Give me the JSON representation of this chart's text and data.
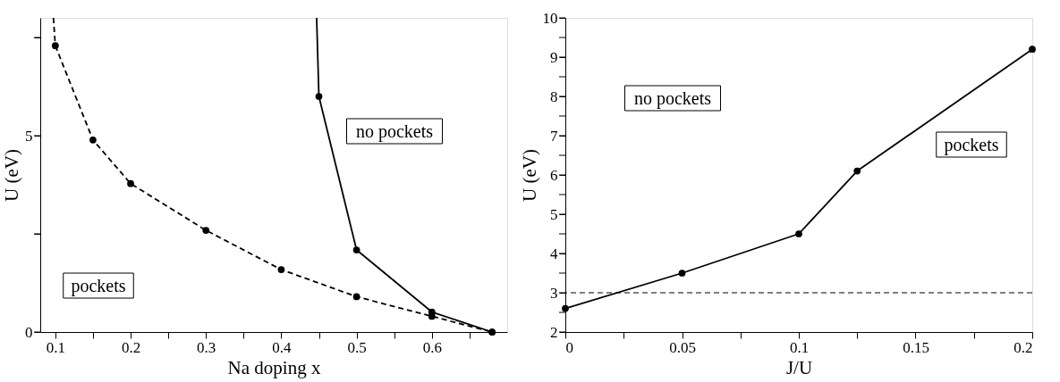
{
  "chart_data": [
    {
      "type": "line",
      "xlabel": "Na doping x",
      "ylabel": "U (eV)",
      "xlim": [
        0.08,
        0.7
      ],
      "ylim": [
        0,
        8
      ],
      "xticks": [
        0.1,
        {
          "value": 0.15,
          "label": null
        },
        0.2,
        {
          "value": 0.25,
          "label": null
        },
        0.3,
        {
          "value": 0.35,
          "label": null
        },
        0.4,
        {
          "value": 0.45,
          "label": null
        },
        0.5,
        {
          "value": 0.55,
          "label": null
        },
        0.6,
        {
          "value": 0.65,
          "label": null
        }
      ],
      "yticks": [
        0,
        {
          "value": 2.5,
          "label": null
        },
        5,
        {
          "value": 7.5,
          "label": null
        }
      ],
      "grid": false,
      "annotations": [
        "no pockets",
        "pockets"
      ],
      "series": [
        {
          "color": "#000000",
          "line_style": "dashed",
          "marker": "circle",
          "x": [
            0.1,
            0.15,
            0.2,
            0.3,
            0.4,
            0.5,
            0.6,
            0.68
          ],
          "values": [
            7.29,
            4.89,
            3.78,
            2.59,
            1.59,
            0.9,
            0.4,
            0
          ]
        },
        {
          "color": "#000000",
          "line_style": "dashed",
          "marker": "none",
          "x": [
            0.0975,
            0.1
          ],
          "values": [
            8,
            7.29
          ]
        },
        {
          "color": "#000000",
          "line_style": "solid",
          "marker": "circle",
          "x": [
            0.45,
            0.5,
            0.6,
            0.68
          ],
          "values": [
            6.0,
            2.09,
            0.51,
            0
          ]
        },
        {
          "color": "#000000",
          "line_style": "solid",
          "marker": "none",
          "x": [
            0.447,
            0.45
          ],
          "values": [
            8,
            6.0
          ]
        }
      ]
    },
    {
      "type": "line",
      "xlabel": "J/U",
      "ylabel": "U (eV)",
      "xlim": [
        0,
        0.2
      ],
      "ylim": [
        2,
        10
      ],
      "xticks": [
        0,
        {
          "value": 0.025,
          "label": null
        },
        0.05,
        {
          "value": 0.075,
          "label": null
        },
        0.1,
        {
          "value": 0.125,
          "label": null
        },
        0.15,
        {
          "value": 0.175,
          "label": null
        },
        0.2
      ],
      "yticks": [
        2,
        {
          "value": 2.5,
          "label": null
        },
        3,
        {
          "value": 3.5,
          "label": null
        },
        4,
        {
          "value": 4.5,
          "label": null
        },
        5,
        {
          "value": 5.5,
          "label": null
        },
        6,
        {
          "value": 6.5,
          "label": null
        },
        7,
        {
          "value": 7.5,
          "label": null
        },
        8,
        {
          "value": 8.5,
          "label": null
        },
        9,
        {
          "value": 9.5,
          "label": null
        },
        10
      ],
      "grid": false,
      "annotations": [
        "no pockets",
        "pockets"
      ],
      "ref_lines": [
        {
          "axis": "y",
          "value": 3,
          "color": "#000000",
          "line_style": "dashed"
        }
      ],
      "series": [
        {
          "color": "#000000",
          "line_style": "solid",
          "marker": "circle",
          "x": [
            0,
            0.05,
            0.1,
            0.125,
            0.2
          ],
          "values": [
            2.6,
            3.5,
            4.5,
            6.1,
            9.2
          ]
        }
      ]
    }
  ]
}
